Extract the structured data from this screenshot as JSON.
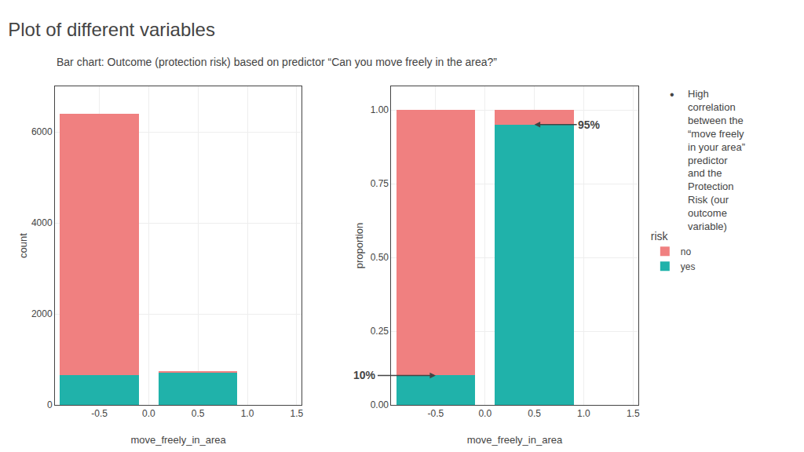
{
  "title": "Plot of different variables",
  "subtitle": "Bar chart: Outcome (protection risk) based on predictor “Can you move freely in the area?”",
  "annotations": [
    {
      "text": "•"
    },
    {
      "text": "High\ncorrelation\nbetween the\n“move freely\nin your area”\npredictor\nand the\nProtection\nRisk (our\noutcome\nvariable)"
    }
  ],
  "chart_data": [
    {
      "type": "bar",
      "stacked": true,
      "grid": true,
      "legend": "right",
      "legend_title": "risk",
      "x": [
        -0.5,
        0.5
      ],
      "xlabel": "move_freely_in_area",
      "ylabel": "count",
      "xlim": [
        -0.95,
        1.55
      ],
      "xticks": [
        -0.5,
        {
          "value": 0,
          "label": "0.0"
        },
        0.5,
        {
          "value": 1,
          "label": "1.0"
        },
        1.5
      ],
      "ylim": [
        0,
        7000
      ],
      "yticks": [
        0,
        2000,
        4000,
        6000
      ],
      "series": [
        {
          "name": "yes",
          "color": "#20B2AA",
          "values": [
            650,
            700
          ]
        },
        {
          "name": "no",
          "color": "#F08080",
          "values": [
            5750,
            50
          ]
        }
      ]
    },
    {
      "type": "bar",
      "stacked": true,
      "grid": true,
      "x": [
        -0.5,
        0.5
      ],
      "xlabel": "move_freely_in_area",
      "ylabel": "proportion",
      "xlim": [
        -0.95,
        1.55
      ],
      "xticks": [
        -0.5,
        {
          "value": 0,
          "label": "0.0"
        },
        0.5,
        {
          "value": 1,
          "label": "1.0"
        },
        1.5
      ],
      "ylim": [
        0,
        1.08
      ],
      "yticks": [
        {
          "value": 0,
          "label": "0.00"
        },
        0.25,
        {
          "value": 0.5,
          "label": "0.50"
        },
        0.75,
        {
          "value": 1,
          "label": "1.00"
        }
      ],
      "series": [
        {
          "name": "yes",
          "color": "#20B2AA",
          "values": [
            0.1,
            0.95
          ]
        },
        {
          "name": "no",
          "color": "#F08080",
          "values": [
            0.9,
            0.05
          ]
        }
      ],
      "annotations": [
        {
          "text": "10%",
          "x": -0.5,
          "y": 0.1
        },
        {
          "text": "95%",
          "x": 0.5,
          "y": 0.95
        }
      ]
    }
  ]
}
